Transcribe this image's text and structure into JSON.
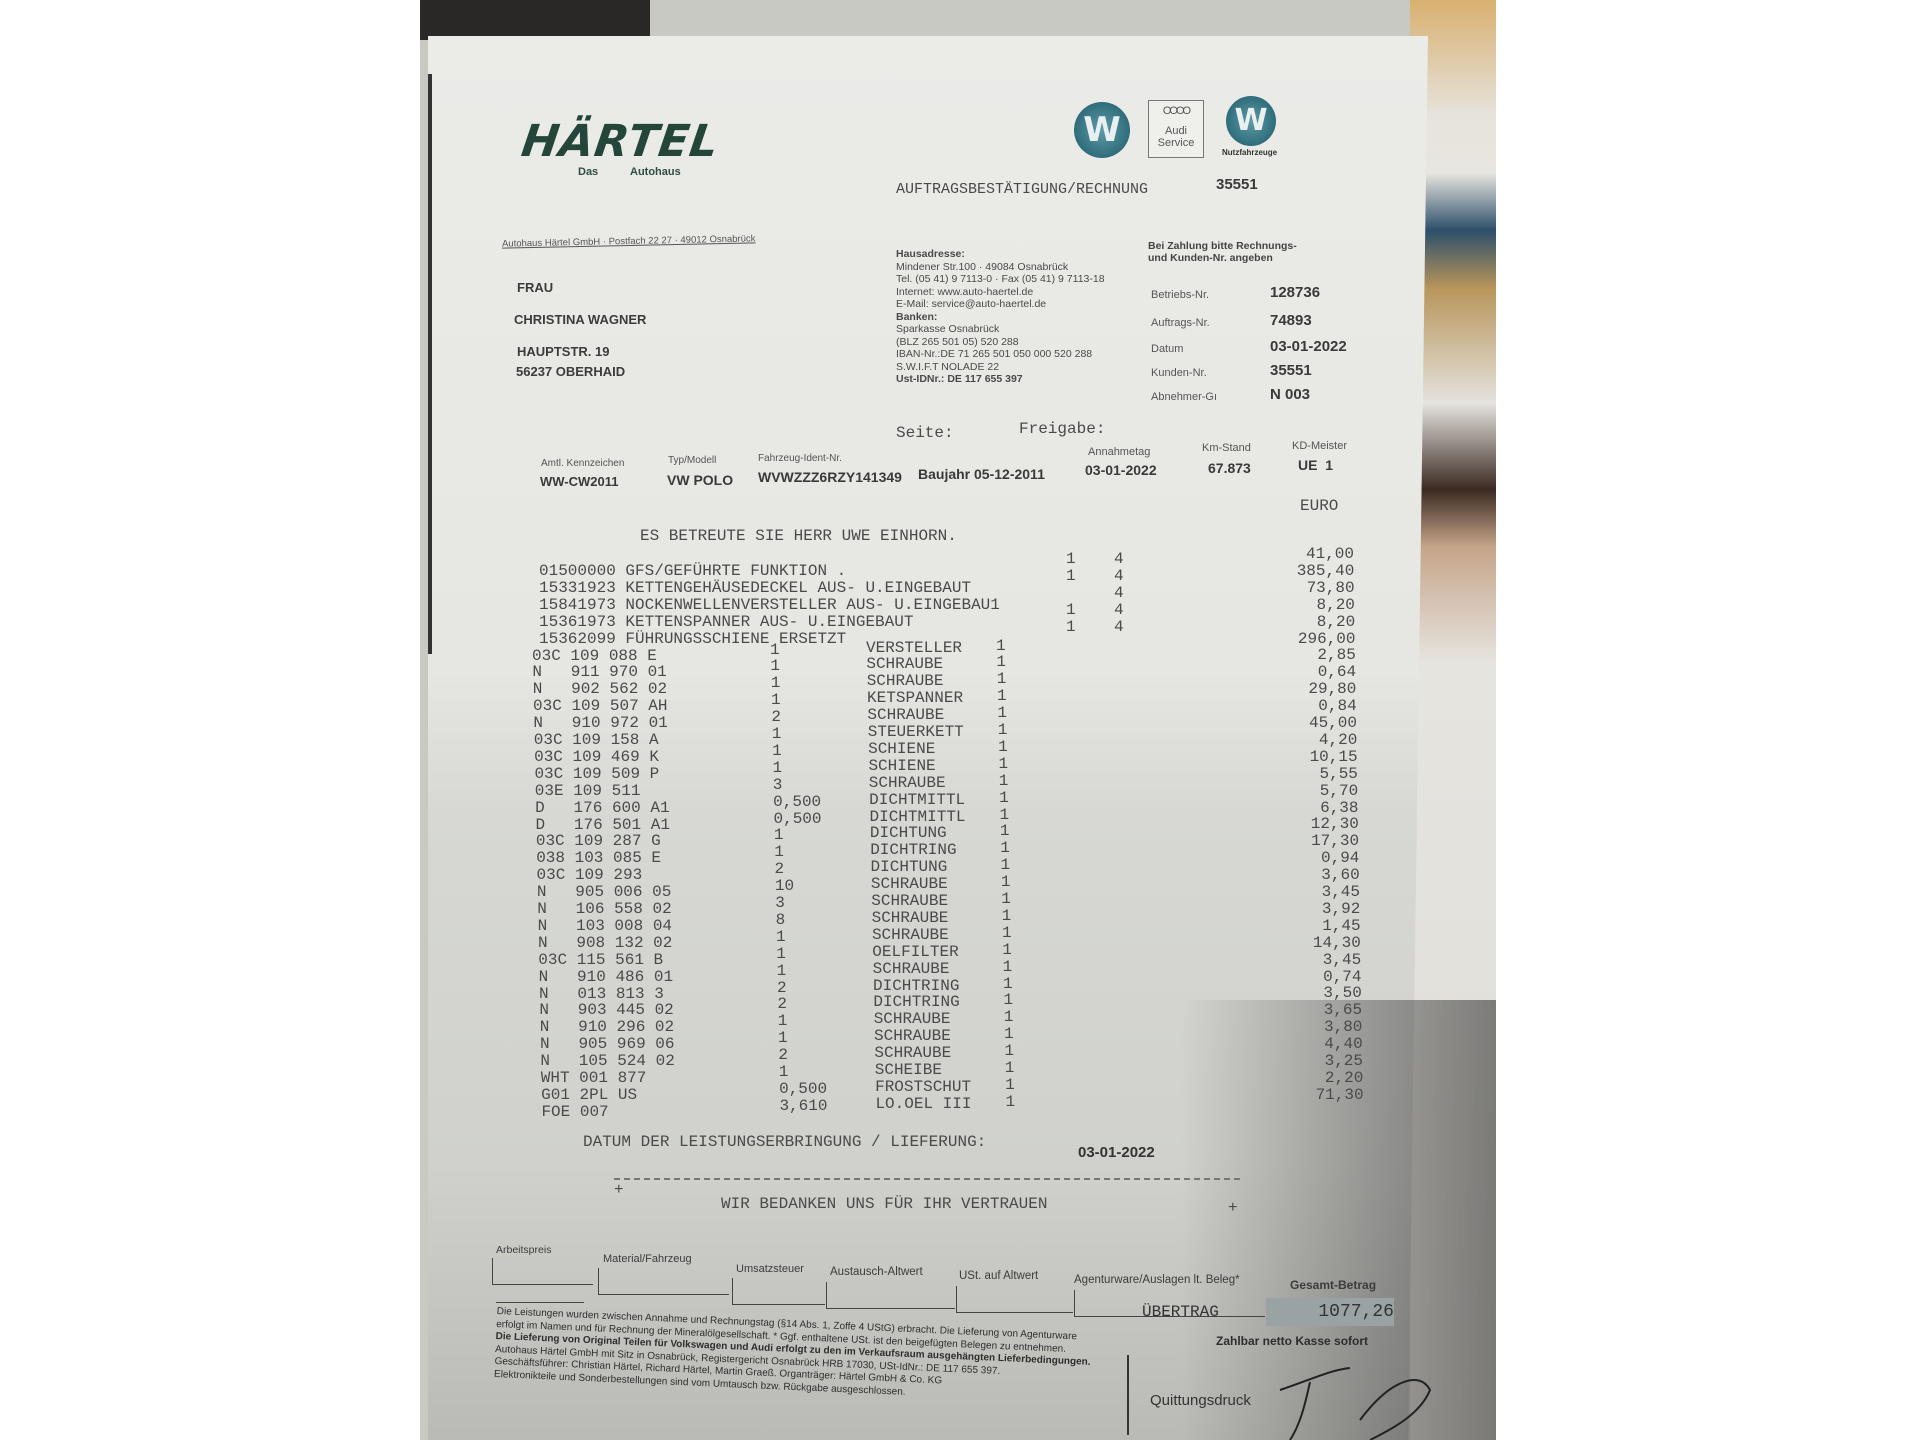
{
  "header": {
    "logo": "HÄRTEL",
    "logo_sub_left": "Das",
    "logo_sub_right": "Autohaus",
    "brand_audi_rings": "OOOO",
    "brand_audi_line1": "Audi",
    "brand_audi_line2": "Service",
    "brand_vw": "W",
    "brand_nutzfahrzeuge": "Nutzfahrzeuge",
    "doc_title": "AUFTRAGSBESTÄTIGUNG/RECHNUNG",
    "doc_number": "35551",
    "sender_line": "Autohaus Härtel GmbH · Postfach 22 27 · 49012 Osnabrück"
  },
  "recipient": {
    "salutation": "FRAU",
    "name": "CHRISTINA WAGNER",
    "street": "HAUPTSTR. 19",
    "city": "56237 OBERHAID"
  },
  "company_info": [
    "Hausadresse:",
    "Mindener Str.100 · 49084 Osnabrück",
    "Tel. (05 41) 9 7113-0 · Fax (05 41) 9 7113-18",
    "Internet: www.auto-haertel.de",
    "E-Mail: service@auto-haertel.de",
    "Banken:",
    "Sparkasse Osnabrück",
    "(BLZ 265 501 05) 520 288",
    "IBAN-Nr.:DE 71 265 501 050 000 520 288",
    "S.W.I.F.T NOLADE 22",
    "Ust-IDNr.: DE 117 655 397"
  ],
  "payment_note": [
    "Bei Zahlung bitte Rechnungs-",
    "und Kunden-Nr. angeben"
  ],
  "reference": [
    {
      "label": "Betriebs-Nr.",
      "value": "128736"
    },
    {
      "label": "Auftrags-Nr.",
      "value": "74893"
    },
    {
      "label": "Datum",
      "value": "03-01-2022"
    },
    {
      "label": "Kunden-Nr.",
      "value": "35551"
    },
    {
      "label": "Abnehmer-Gı",
      "value": "N 003"
    }
  ],
  "page": {
    "seite_label": "Seite:",
    "freigabe_label": "Freigabe:"
  },
  "vehicle": {
    "kennzeichen_label": "Amtl. Kennzeichen",
    "kennzeichen": "WW-CW2011",
    "typ_label": "Typ/Modell",
    "typ": "VW POLO",
    "fin_label": "Fahrzeug-Ident-Nr.",
    "fin": "WVWZZZ6RZY141349",
    "baujahr": "Baujahr 05-12-2011",
    "annahme_label": "Annahmetag",
    "annahme": "03-01-2022",
    "km_label": "Km-Stand",
    "km": "67.873",
    "kd_label": "KD-Meister",
    "kd": "UE  1"
  },
  "currency": "EURO",
  "advisor_line": "ES BETREUTE SIE HERR UWE EINHORN.",
  "labour_items": [
    {
      "text": "01500000 GFS/GEFÜHRTE FUNKTION .",
      "a": "1",
      "b": "4"
    },
    {
      "text": "15331923 KETTENGEHÄUSEDECKEL AUS- U.EINGEBAUT",
      "a": "1",
      "b": "4"
    },
    {
      "text": "15841973 NOCKENWELLENVERSTELLER AUS- U.EINGEBAU1",
      "a": "",
      "b": "4"
    },
    {
      "text": "15361973 KETTENSPANNER AUS- U.EINGEBAUT",
      "a": "1",
      "b": "4"
    },
    {
      "text": "15362099 FÜHRUNGSSCHIENE ERSETZT",
      "a": "1",
      "b": "4"
    }
  ],
  "parts": [
    {
      "nr": "03C 109 088 E",
      "qty": "1",
      "desc": "VERSTELLER",
      "flag": "1"
    },
    {
      "nr": "N   911 970 01",
      "qty": "1",
      "desc": "SCHRAUBE",
      "flag": "1"
    },
    {
      "nr": "N   902 562 02",
      "qty": "1",
      "desc": "SCHRAUBE",
      "flag": "1"
    },
    {
      "nr": "03C 109 507 AH",
      "qty": "1",
      "desc": "KETSPANNER",
      "flag": "1"
    },
    {
      "nr": "N   910 972 01",
      "qty": "2",
      "desc": "SCHRAUBE",
      "flag": "1"
    },
    {
      "nr": "03C 109 158 A",
      "qty": "1",
      "desc": "STEUERKETT",
      "flag": "1"
    },
    {
      "nr": "03C 109 469 K",
      "qty": "1",
      "desc": "SCHIENE",
      "flag": "1"
    },
    {
      "nr": "03C 109 509 P",
      "qty": "1",
      "desc": "SCHIENE",
      "flag": "1"
    },
    {
      "nr": "03E 109 511",
      "qty": "3",
      "desc": "SCHRAUBE",
      "flag": "1"
    },
    {
      "nr": "D   176 600 A1",
      "qty": "0,500",
      "desc": "DICHTMITTL",
      "flag": "1"
    },
    {
      "nr": "D   176 501 A1",
      "qty": "0,500",
      "desc": "DICHTMITTL",
      "flag": "1"
    },
    {
      "nr": "03C 109 287 G",
      "qty": "1",
      "desc": "DICHTUNG",
      "flag": "1"
    },
    {
      "nr": "038 103 085 E",
      "qty": "1",
      "desc": "DICHTRING",
      "flag": "1"
    },
    {
      "nr": "03C 109 293",
      "qty": "2",
      "desc": "DICHTUNG",
      "flag": "1"
    },
    {
      "nr": "N   905 006 05",
      "qty": "10",
      "desc": "SCHRAUBE",
      "flag": "1"
    },
    {
      "nr": "N   106 558 02",
      "qty": "3",
      "desc": "SCHRAUBE",
      "flag": "1"
    },
    {
      "nr": "N   103 008 04",
      "qty": "8",
      "desc": "SCHRAUBE",
      "flag": "1"
    },
    {
      "nr": "N   908 132 02",
      "qty": "1",
      "desc": "SCHRAUBE",
      "flag": "1"
    },
    {
      "nr": "03C 115 561 B",
      "qty": "1",
      "desc": "OELFILTER",
      "flag": "1"
    },
    {
      "nr": "N   910 486 01",
      "qty": "1",
      "desc": "SCHRAUBE",
      "flag": "1"
    },
    {
      "nr": "N   013 813 3",
      "qty": "2",
      "desc": "DICHTRING",
      "flag": "1"
    },
    {
      "nr": "N   903 445 02",
      "qty": "2",
      "desc": "DICHTRING",
      "flag": "1"
    },
    {
      "nr": "N   910 296 02",
      "qty": "1",
      "desc": "SCHRAUBE",
      "flag": "1"
    },
    {
      "nr": "N   905 969 06",
      "qty": "1",
      "desc": "SCHRAUBE",
      "flag": "1"
    },
    {
      "nr": "N   105 524 02",
      "qty": "2",
      "desc": "SCHRAUBE",
      "flag": "1"
    },
    {
      "nr": "WHT 001 877",
      "qty": "1",
      "desc": "SCHEIBE",
      "flag": "1"
    },
    {
      "nr": "G01 2PL US",
      "qty": "0,500",
      "desc": "FROSTSCHUT",
      "flag": "1"
    },
    {
      "nr": "FOE 007",
      "qty": "3,610",
      "desc": "LO.OEL III",
      "flag": "1"
    }
  ],
  "prices": [
    "41,00",
    "385,40",
    "73,80",
    "8,20",
    "8,20",
    "296,00",
    "2,85",
    "0,64",
    "29,80",
    "0,84",
    "45,00",
    "4,20",
    "10,15",
    "5,55",
    "5,70",
    "6,38",
    "12,30",
    "17,30",
    "0,94",
    "3,60",
    "3,45",
    "3,92",
    "1,45",
    "14,30",
    "3,45",
    "0,74",
    "3,50",
    "3,65",
    "3,80",
    "4,40",
    "3,25",
    "2,20",
    "71,30"
  ],
  "delivery": {
    "label": "DATUM DER LEISTUNGSERBRINGUNG / LIEFERUNG:",
    "date": "03-01-2022"
  },
  "thanks": {
    "plus": "+",
    "text": "WIR BEDANKEN UNS FÜR IHR VERTRAUEN"
  },
  "totals": {
    "columns": [
      "Arbeitspreis",
      "Material/Fahrzeug",
      "Umsatzsteuer",
      "Austausch-Altwert",
      "USt. auf Altwert",
      "Agenturware/Auslagen lt. Beleg*",
      "Gesamt-Betrag"
    ],
    "uebertrag_label": "ÜBERTRAG",
    "amount": "1077,26",
    "payment_terms": "Zahlbar netto Kasse sofort"
  },
  "legal": [
    "Die Leistungen wurden zwischen Annahme und Rechnungstag (§14 Abs. 1, Zoffe 4 UStG) erbracht. Die Lieferung von Agenturware",
    "erfolgt im Namen und für Rechnung der Mineralölgesellschaft. * Ggf. enthaltene USt. ist den beigefügten Belegen zu entnehmen.",
    "Die Lieferung von Original Teilen für Volkswagen und Audi erfolgt zu den im Verkaufsraum ausgehängten Lieferbedingungen.",
    "Autohaus Härtel GmbH mit Sitz in Osnabrück, Registergericht Osnabrück HRB 17030, USt-IdNr.: DE 117 655 397.",
    "Geschäftsführer: Christian Härtel, Richard Härtel, Martin Graeß. Organträger: Härtel GmbH & Co. KG",
    "Elektronikteile und Sonderbestellungen sind vom Umtausch bzw. Rückgabe ausgeschlossen."
  ],
  "receipt_label": "Quittungsdruck",
  "colors": {
    "logo_green": "#24453a",
    "vw_blue": "#2f6d7b",
    "amount_box": "#9aa3a3"
  }
}
